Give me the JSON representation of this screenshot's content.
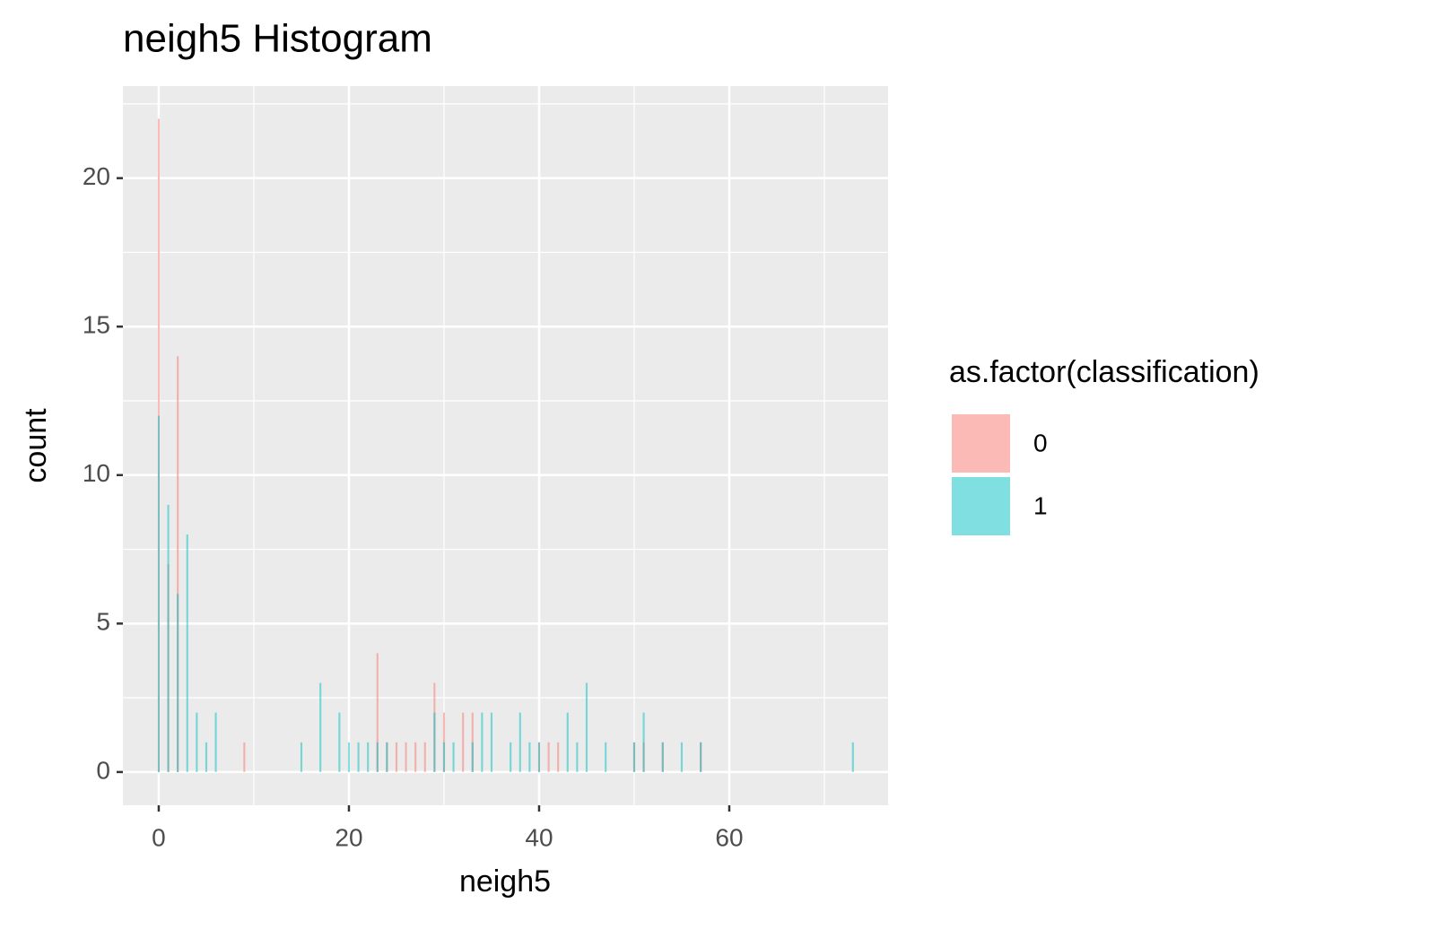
{
  "chart_data": {
    "type": "bar",
    "title": "neigh5 Histogram",
    "x_label": "neigh5",
    "y_label": "count",
    "x": [
      0,
      1,
      2,
      3,
      4,
      5,
      6,
      9,
      15,
      17,
      19,
      20,
      21,
      22,
      23,
      24,
      25,
      26,
      27,
      28,
      29,
      30,
      31,
      32,
      33,
      34,
      35,
      37,
      38,
      39,
      40,
      41,
      42,
      43,
      44,
      45,
      47,
      50,
      51,
      53,
      55,
      57,
      73
    ],
    "series": [
      {
        "name": "0",
        "color": "#F8766D",
        "values": [
          22,
          7,
          14,
          0,
          0,
          0,
          0,
          1,
          0,
          0,
          0,
          0,
          0,
          0,
          4,
          1,
          1,
          1,
          1,
          1,
          3,
          2,
          0,
          2,
          2,
          0,
          0,
          0,
          0,
          0,
          1,
          1,
          1,
          0,
          0,
          0,
          0,
          1,
          1,
          1,
          0,
          1,
          0
        ]
      },
      {
        "name": "1",
        "color": "#00BFC4",
        "values": [
          12,
          9,
          6,
          8,
          2,
          1,
          2,
          0,
          1,
          3,
          2,
          1,
          1,
          1,
          1,
          1,
          0,
          0,
          0,
          0,
          2,
          1,
          1,
          0,
          1,
          2,
          2,
          1,
          2,
          1,
          1,
          0,
          0,
          2,
          1,
          3,
          1,
          1,
          2,
          1,
          1,
          1,
          1
        ]
      }
    ],
    "legend_title": "as.factor(classification)",
    "legend": "right",
    "xlim": [
      -3.77,
      76.7
    ],
    "xticks": [
      0,
      20,
      40,
      60
    ],
    "ylim": [
      -1.12,
      23.1
    ],
    "yticks": [
      0,
      5,
      10,
      15,
      20
    ],
    "grid": true
  }
}
